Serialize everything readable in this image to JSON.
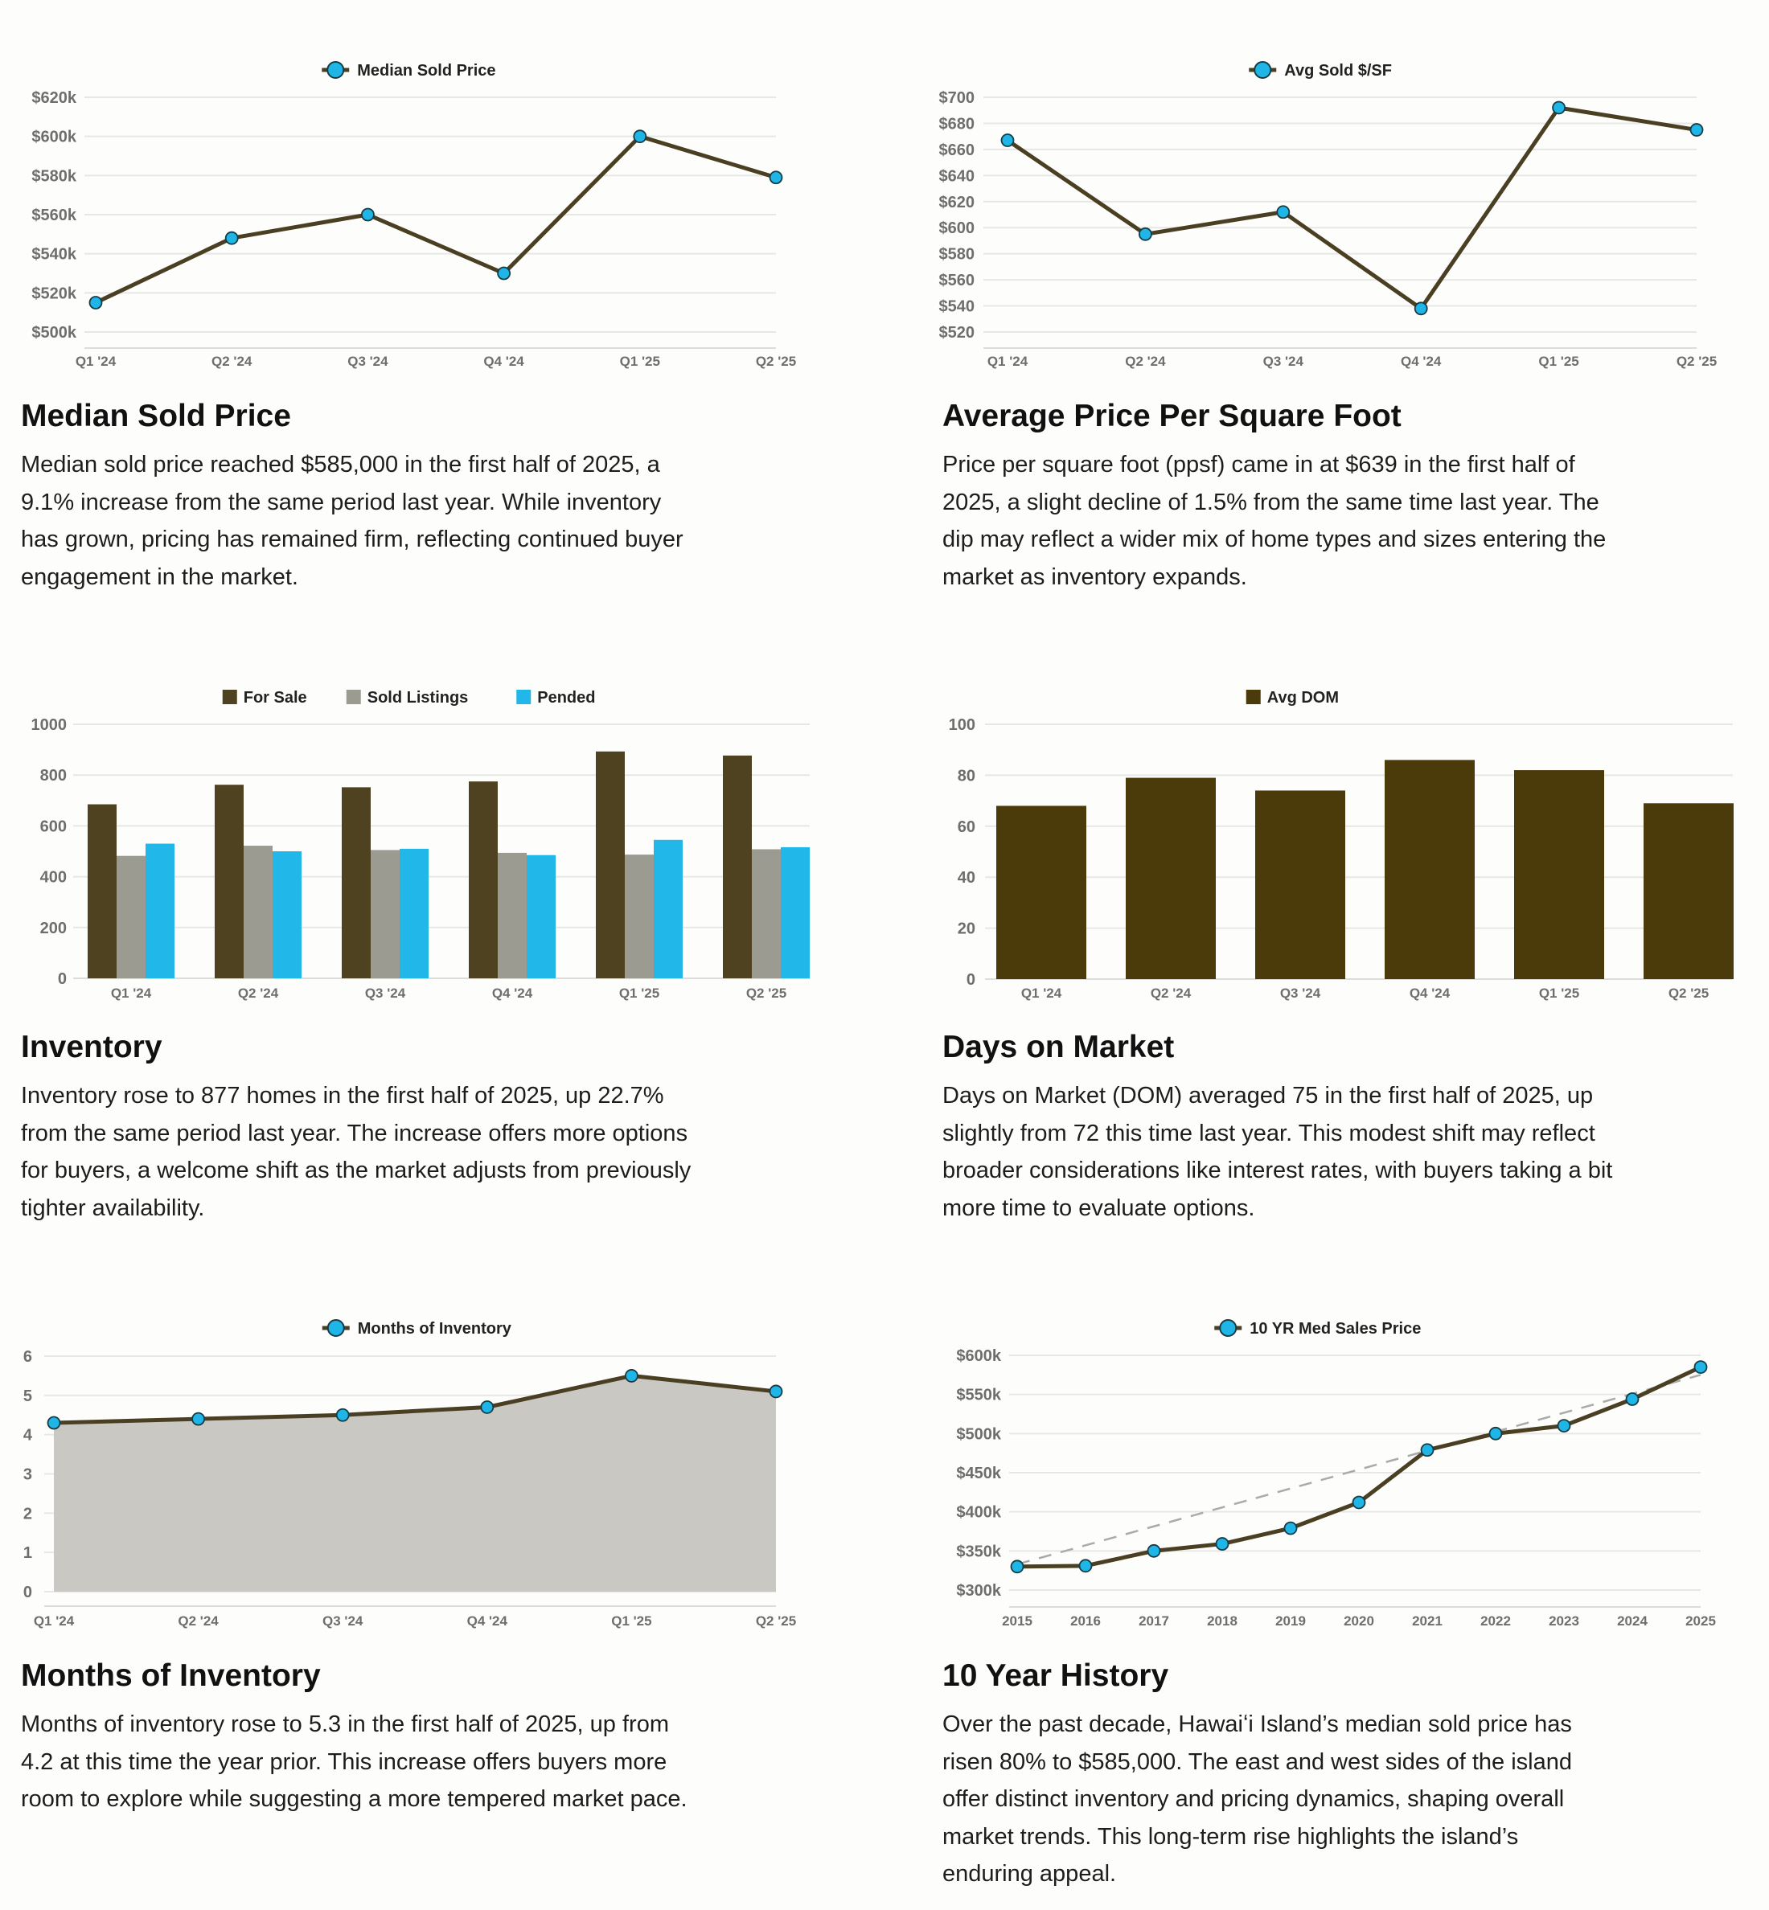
{
  "colors": {
    "line": "#4a3f22",
    "marker": "#1fb5e6",
    "for_sale": "#4f4220",
    "sold_listings": "#9c9b92",
    "pended": "#22b7e9",
    "dom_bar": "#4c3b0a",
    "area_fill": "#c9c8c2",
    "trendline": "#aaaaaa",
    "grid": "#e7e7e5"
  },
  "panels": [
    {
      "title": "Median Sold Price",
      "body_lines": [
        "Median sold price reached $585,000 in the first half of 2025, a",
        "9.1% increase from the same period last year. While inventory",
        "has grown, pricing has remained firm, reflecting continued buyer",
        "engagement in the market."
      ]
    },
    {
      "title": "Average Price Per Square Foot",
      "body_lines": [
        "Price per square foot (ppsf) came in at $639 in the first half of",
        "2025, a slight decline of 1.5% from the same time last year. The",
        "dip may reflect a wider mix of home types and sizes entering the",
        "market as inventory expands."
      ]
    },
    {
      "title": "Inventory",
      "body_lines": [
        "Inventory rose to 877 homes in the first half of 2025, up 22.7%",
        "from the same period last year. The increase offers more options",
        "for buyers, a welcome shift as the market adjusts from previously",
        "tighter availability."
      ]
    },
    {
      "title": "Days on Market",
      "body_lines": [
        "Days on Market (DOM) averaged 75 in the first half of 2025, up",
        "slightly from 72 this time last year. This modest shift may reflect",
        "broader considerations like interest rates, with buyers taking a bit",
        "more time to evaluate options."
      ]
    },
    {
      "title": "Months of Inventory",
      "body_lines": [
        "Months of inventory rose to 5.3 in the first half of 2025, up from",
        "4.2 at this time the year prior. This increase offers buyers more",
        "room to explore while suggesting a more tempered market pace."
      ]
    },
    {
      "title": "10 Year History",
      "body_lines": [
        "Over the past decade, Hawaiʻi Island’s median sold price has",
        "risen 80% to $585,000. The east and west sides of the island",
        "offer distinct inventory and pricing dynamics, shaping overall",
        "market trends. This long-term rise highlights the island’s",
        "enduring appeal."
      ]
    }
  ],
  "chart_data": [
    {
      "id": "median",
      "type": "line",
      "legend_position": "top-center",
      "grid": true,
      "categories": [
        "Q1 '24",
        "Q2 '24",
        "Q3 '24",
        "Q4 '24",
        "Q1 '25",
        "Q2 '25"
      ],
      "series": [
        {
          "name": "Median Sold Price",
          "values": [
            515000,
            548000,
            560000,
            530000,
            600000,
            579000
          ]
        }
      ],
      "yticks": [
        500000,
        520000,
        540000,
        560000,
        580000,
        600000,
        620000
      ],
      "ytick_labels": [
        "$500k",
        "$520k",
        "$540k",
        "$560k",
        "$580k",
        "$600k",
        "$620k"
      ],
      "ylim": [
        500000,
        620000
      ]
    },
    {
      "id": "ppsf",
      "type": "line",
      "legend_position": "top-center",
      "grid": true,
      "categories": [
        "Q1 '24",
        "Q2 '24",
        "Q3 '24",
        "Q4 '24",
        "Q1 '25",
        "Q2 '25"
      ],
      "series": [
        {
          "name": "Avg Sold $/SF",
          "values": [
            667,
            595,
            612,
            538,
            692,
            675
          ]
        }
      ],
      "yticks": [
        520,
        540,
        560,
        580,
        600,
        620,
        640,
        660,
        680,
        700
      ],
      "ytick_labels": [
        "$520",
        "$540",
        "$560",
        "$580",
        "$600",
        "$620",
        "$640",
        "$660",
        "$680",
        "$700"
      ],
      "ylim": [
        520,
        700
      ]
    },
    {
      "id": "inventory",
      "type": "bar",
      "legend_position": "top-center",
      "grid": true,
      "categories": [
        "Q1 '24",
        "Q2 '24",
        "Q3 '24",
        "Q4 '24",
        "Q1 '25",
        "Q2 '25"
      ],
      "series": [
        {
          "name": "For Sale",
          "values": [
            685,
            762,
            752,
            775,
            893,
            877
          ]
        },
        {
          "name": "Sold Listings",
          "values": [
            482,
            522,
            505,
            494,
            487,
            508
          ]
        },
        {
          "name": "Pended",
          "values": [
            530,
            500,
            510,
            485,
            545,
            516
          ]
        }
      ],
      "yticks": [
        0,
        200,
        400,
        600,
        800,
        1000
      ],
      "ytick_labels": [
        "0",
        "200",
        "400",
        "600",
        "800",
        "1000"
      ],
      "ylim": [
        0,
        1000
      ]
    },
    {
      "id": "dom",
      "type": "bar",
      "legend_position": "top-center",
      "grid": true,
      "categories": [
        "Q1 '24",
        "Q2 '24",
        "Q3 '24",
        "Q4 '24",
        "Q1 '25",
        "Q2 '25"
      ],
      "series": [
        {
          "name": "Avg DOM",
          "values": [
            68,
            79,
            74,
            86,
            82,
            69
          ]
        }
      ],
      "yticks": [
        0,
        20,
        40,
        60,
        80,
        100
      ],
      "ytick_labels": [
        "0",
        "20",
        "40",
        "60",
        "80",
        "100"
      ],
      "ylim": [
        0,
        100
      ]
    },
    {
      "id": "moi",
      "type": "area",
      "legend_position": "top-center",
      "grid": true,
      "categories": [
        "Q1 '24",
        "Q2 '24",
        "Q3 '24",
        "Q4 '24",
        "Q1 '25",
        "Q2 '25"
      ],
      "series": [
        {
          "name": "Months of Inventory",
          "values": [
            4.3,
            4.4,
            4.5,
            4.7,
            5.5,
            5.1
          ]
        }
      ],
      "yticks": [
        0,
        1,
        2,
        3,
        4,
        5,
        6
      ],
      "ytick_labels": [
        "0",
        "1",
        "2",
        "3",
        "4",
        "5",
        "6"
      ],
      "ylim": [
        0,
        6
      ]
    },
    {
      "id": "tenyr",
      "type": "line",
      "legend_position": "top-center",
      "grid": true,
      "categories": [
        "2015",
        "2016",
        "2017",
        "2018",
        "2019",
        "2020",
        "2021",
        "2022",
        "2023",
        "2024",
        "2025"
      ],
      "series": [
        {
          "name": "10 YR Med Sales Price",
          "values": [
            330000,
            331000,
            350000,
            359000,
            379000,
            412000,
            479000,
            500000,
            510000,
            544000,
            585000
          ]
        }
      ],
      "trendline": {
        "style": "dashed",
        "start": 333000,
        "end": 575000
      },
      "yticks": [
        300000,
        350000,
        400000,
        450000,
        500000,
        550000,
        600000
      ],
      "ytick_labels": [
        "$300k",
        "$350k",
        "$400k",
        "$450k",
        "$500k",
        "$550k",
        "$600k"
      ],
      "ylim": [
        300000,
        600000
      ]
    }
  ]
}
